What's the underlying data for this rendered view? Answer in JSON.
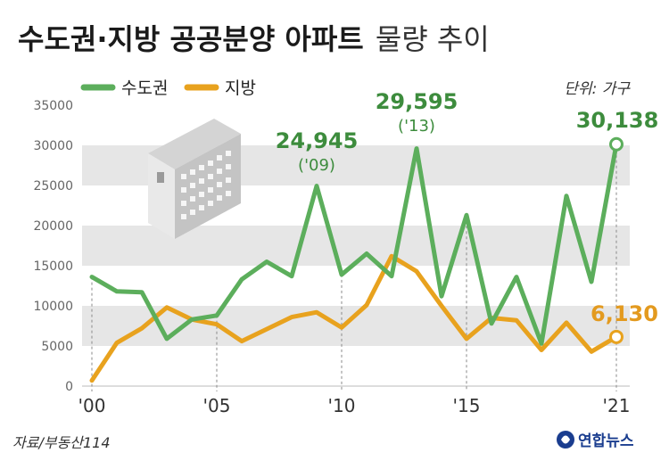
{
  "header": {
    "title_bold": "수도권·지방 공공분양 아파트",
    "title_regular": "물량 추이"
  },
  "legend": {
    "metro_label": "수도권",
    "local_label": "지방"
  },
  "unit_label": "단위: 가구",
  "source_label": "자료/부동산114",
  "logo_label": "연합뉴스",
  "colors": {
    "metro": "#5cae5c",
    "local": "#e8a21e",
    "band": "#e6e6e6"
  },
  "annotations": {
    "peak_2009_value": "24,945",
    "peak_2009_year": "('09)",
    "peak_2013_value": "29,595",
    "peak_2013_year": "('13)",
    "end_metro_value": "30,138",
    "end_local_value": "6,130"
  },
  "chart_data": {
    "type": "line",
    "x": [
      2000,
      2001,
      2002,
      2003,
      2004,
      2005,
      2006,
      2007,
      2008,
      2009,
      2010,
      2011,
      2012,
      2013,
      2014,
      2015,
      2016,
      2017,
      2018,
      2019,
      2020,
      2021
    ],
    "x_tick_labels": [
      "'00",
      "'05",
      "'10",
      "'15",
      "'21"
    ],
    "x_tick_positions": [
      2000,
      2005,
      2010,
      2015,
      2021
    ],
    "series": [
      {
        "name": "수도권",
        "values": [
          13600,
          11800,
          11700,
          5900,
          8300,
          8800,
          13300,
          15500,
          13700,
          24945,
          13900,
          16500,
          13700,
          29595,
          11200,
          21300,
          7800,
          13600,
          5300,
          23700,
          13000,
          30138
        ]
      },
      {
        "name": "지방",
        "values": [
          700,
          5400,
          7200,
          9800,
          8300,
          7700,
          5600,
          7100,
          8600,
          9200,
          7300,
          10100,
          16200,
          14300,
          10000,
          5900,
          8500,
          8200,
          4500,
          7900,
          4300,
          6130
        ]
      }
    ],
    "ylim": [
      0,
      35000
    ],
    "y_ticks": [
      0,
      5000,
      10000,
      15000,
      20000,
      25000,
      30000,
      35000
    ],
    "y_tick_labels": [
      "0",
      "5000",
      "10000",
      "15000",
      "20000",
      "25000",
      "30000",
      "35000"
    ]
  }
}
